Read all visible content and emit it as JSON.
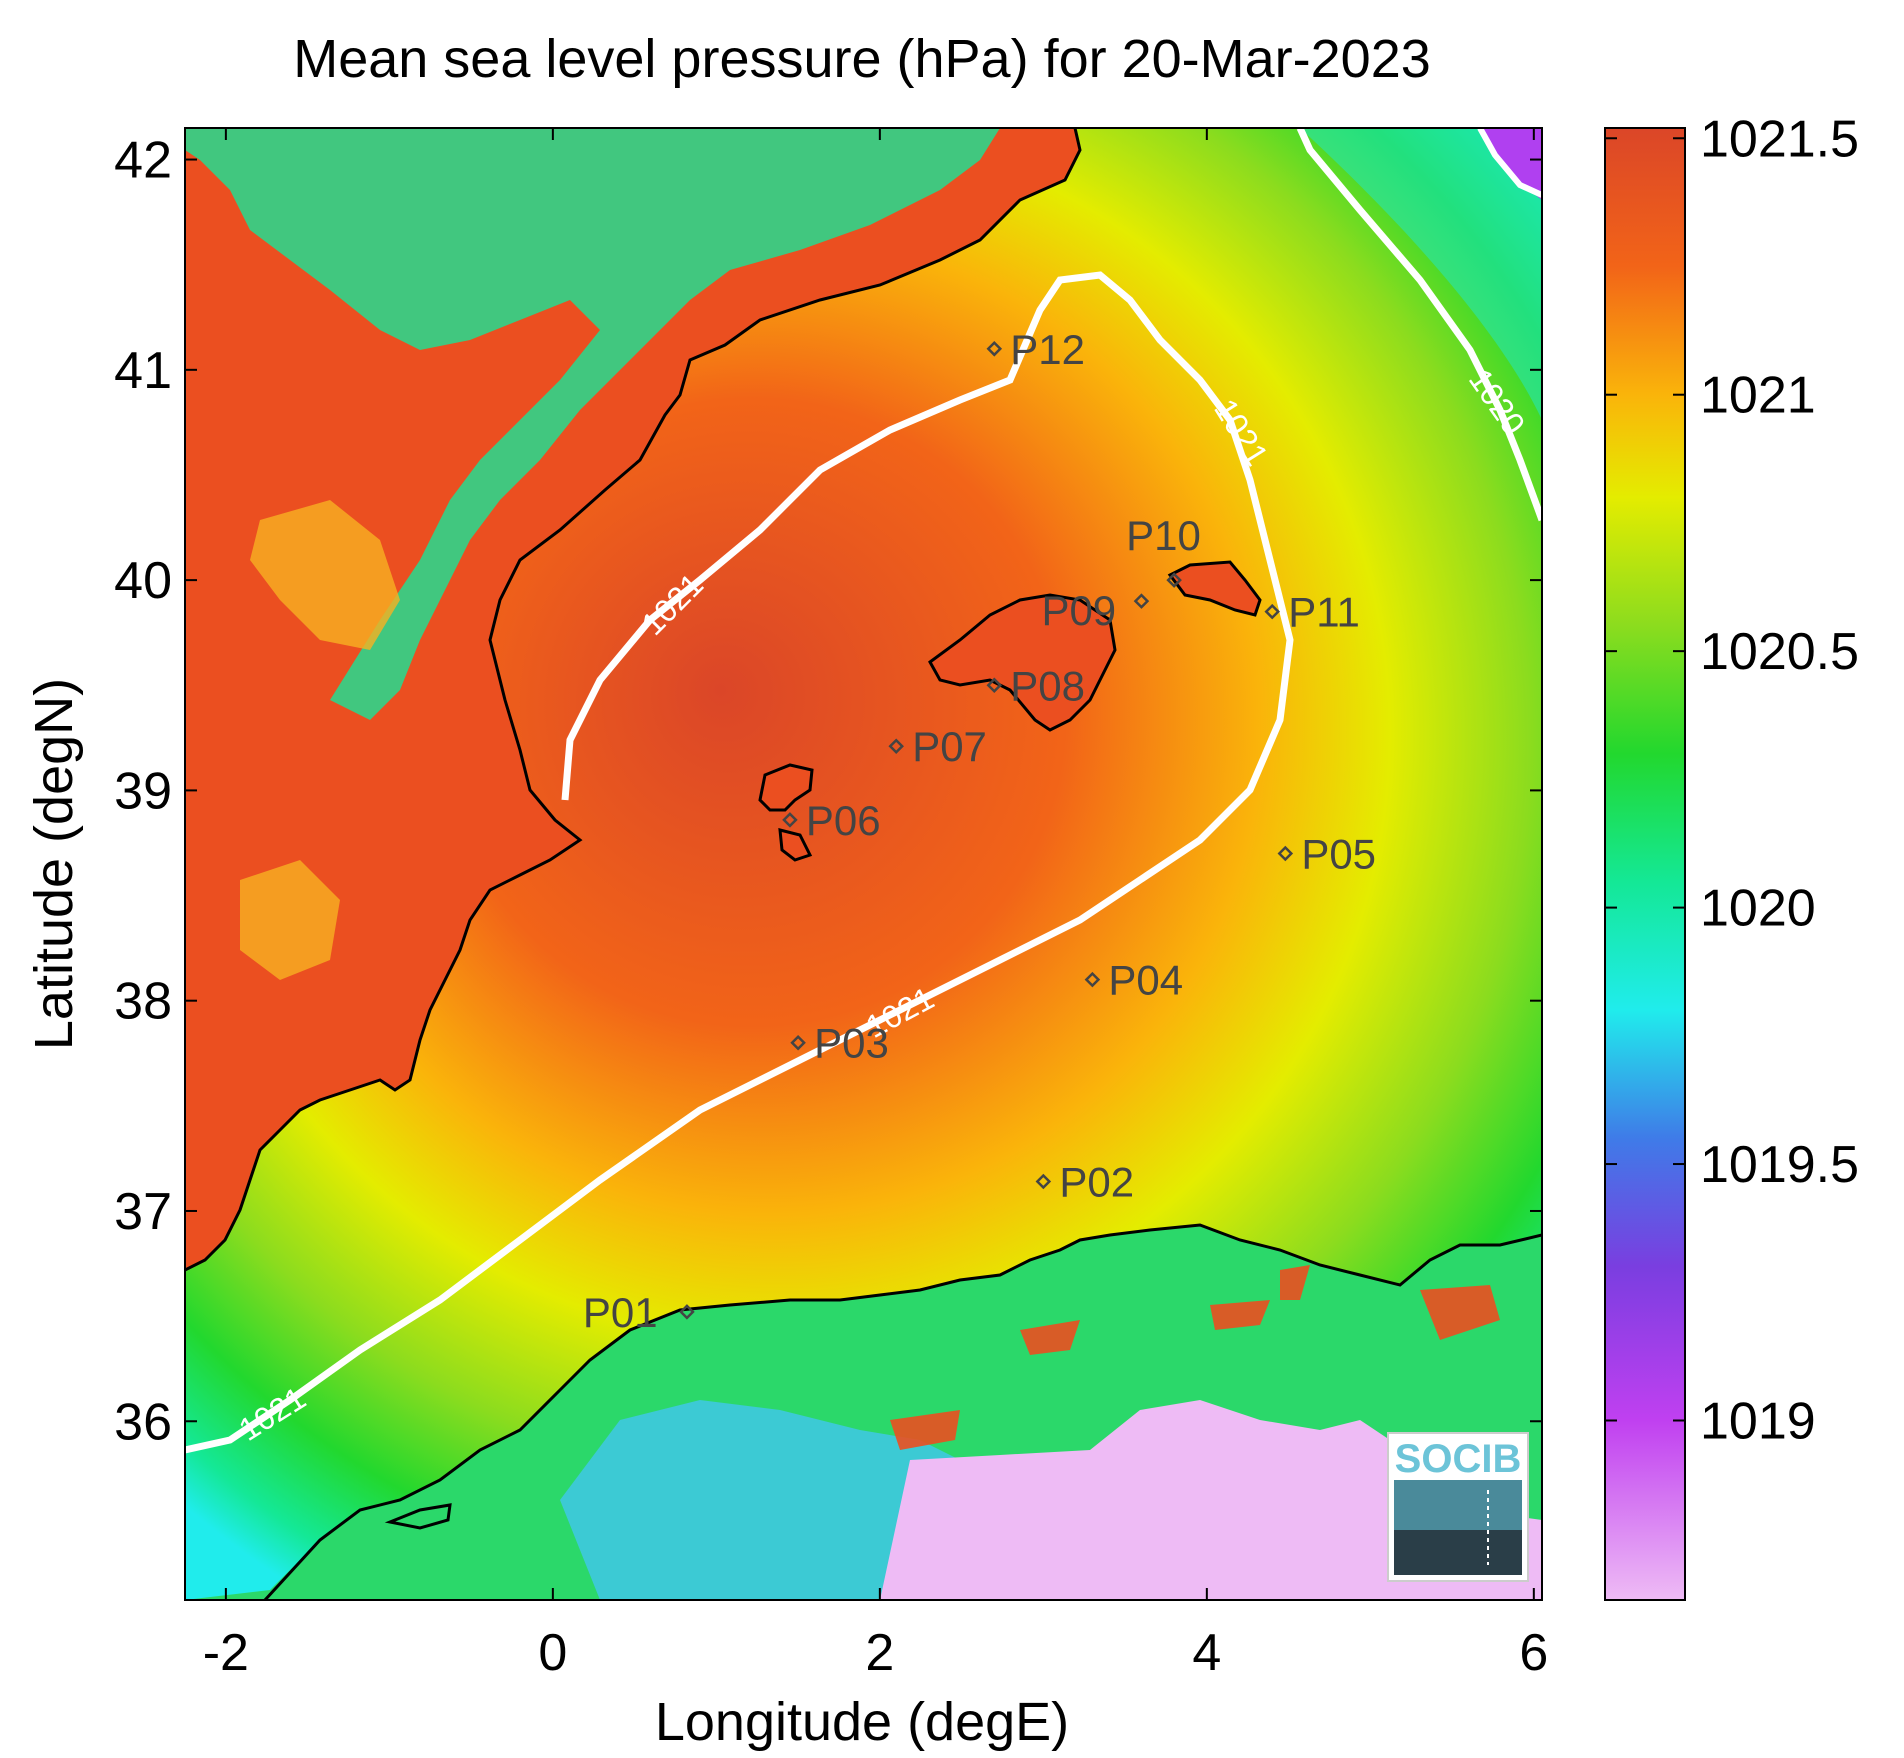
{
  "chart_data": {
    "type": "heatmap",
    "title": "Mean sea level pressure (hPa) for 20-Mar-2023",
    "xlabel": "Longitude (degE)",
    "ylabel": "Latitude (degN)",
    "xlim": [
      -2.25,
      6.05
    ],
    "ylim": [
      35.15,
      42.15
    ],
    "xticks": [
      -2,
      0,
      2,
      4,
      6
    ],
    "xtick_labels": [
      "-2",
      "0",
      "2",
      "4",
      "6"
    ],
    "yticks": [
      36,
      37,
      38,
      39,
      40,
      41,
      42
    ],
    "ytick_labels": [
      "36",
      "37",
      "38",
      "39",
      "40",
      "41",
      "42"
    ],
    "colorbar": {
      "range": [
        1018.65,
        1021.52
      ],
      "ticks": [
        1019,
        1019.5,
        1020,
        1020.5,
        1021,
        1021.5
      ],
      "tick_labels": [
        "1019",
        "1019.5",
        "1020",
        "1020.5",
        "1021",
        "1021.5"
      ],
      "stops": [
        {
          "value": 1018.65,
          "color": "#eebbf5"
        },
        {
          "value": 1019.0,
          "color": "#c040f0"
        },
        {
          "value": 1019.3,
          "color": "#7a3ee0"
        },
        {
          "value": 1019.55,
          "color": "#3f7be8"
        },
        {
          "value": 1019.8,
          "color": "#20ecec"
        },
        {
          "value": 1020.05,
          "color": "#14e896"
        },
        {
          "value": 1020.3,
          "color": "#22d82e"
        },
        {
          "value": 1020.55,
          "color": "#8cdc1e"
        },
        {
          "value": 1020.8,
          "color": "#e4ec00"
        },
        {
          "value": 1021.0,
          "color": "#fab40a"
        },
        {
          "value": 1021.25,
          "color": "#f26418"
        },
        {
          "value": 1021.52,
          "color": "#db4628"
        }
      ]
    },
    "contours": [
      {
        "level": 1021,
        "labels": [
          "1021",
          "1021",
          "1021",
          "1021"
        ]
      },
      {
        "level": 1020,
        "labels": [
          "1020"
        ]
      }
    ],
    "stations": [
      {
        "name": "P01",
        "lon": 0.82,
        "lat": 36.52
      },
      {
        "name": "P02",
        "lon": 3.0,
        "lat": 37.14
      },
      {
        "name": "P03",
        "lon": 1.5,
        "lat": 37.8
      },
      {
        "name": "P04",
        "lon": 3.3,
        "lat": 38.1
      },
      {
        "name": "P05",
        "lon": 4.48,
        "lat": 38.7
      },
      {
        "name": "P06",
        "lon": 1.45,
        "lat": 38.86
      },
      {
        "name": "P07",
        "lon": 2.1,
        "lat": 39.21
      },
      {
        "name": "P08",
        "lon": 2.7,
        "lat": 39.5
      },
      {
        "name": "P09",
        "lon": 3.6,
        "lat": 39.9
      },
      {
        "name": "P10",
        "lon": 3.8,
        "lat": 40.0
      },
      {
        "name": "P11",
        "lon": 4.4,
        "lat": 39.85
      },
      {
        "name": "P12",
        "lon": 2.7,
        "lat": 41.1
      }
    ],
    "logo": "SOCIB",
    "grid": false
  }
}
